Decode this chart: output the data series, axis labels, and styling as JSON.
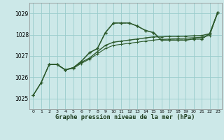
{
  "title": "Graphe pression niveau de la mer (hPa)",
  "bg_color": "#cce8e8",
  "grid_color": "#99cccc",
  "line_color": "#2d5a2d",
  "xlim": [
    -0.5,
    23.5
  ],
  "ylim": [
    1024.5,
    1029.5
  ],
  "yticks": [
    1025,
    1026,
    1027,
    1028,
    1029
  ],
  "xticks": [
    0,
    1,
    2,
    3,
    4,
    5,
    6,
    7,
    8,
    9,
    10,
    11,
    12,
    13,
    14,
    15,
    16,
    17,
    18,
    19,
    20,
    21,
    22,
    23
  ],
  "series": {
    "s1_x": [
      0,
      1,
      2,
      3,
      4,
      5,
      6,
      7,
      8,
      9,
      10,
      11,
      12,
      13,
      14,
      15,
      16,
      17,
      18,
      19,
      20,
      21,
      22,
      23
    ],
    "s1_y": [
      1025.15,
      1025.75,
      1026.6,
      1026.6,
      1026.35,
      1026.45,
      1026.75,
      1027.15,
      1027.35,
      1028.1,
      1028.55,
      1028.55,
      1028.55,
      1028.4,
      1028.2,
      1028.1,
      1027.75,
      1027.75,
      1027.75,
      1027.75,
      1027.8,
      1027.8,
      1028.05,
      1029.05
    ],
    "s2_x": [
      0,
      1,
      2,
      3,
      4,
      5,
      6,
      7,
      8,
      9,
      10,
      11,
      12,
      13,
      14,
      15,
      16,
      17,
      18,
      19,
      20,
      21,
      22,
      23
    ],
    "s2_y": [
      1025.15,
      1025.75,
      1026.6,
      1026.6,
      1026.35,
      1026.45,
      1026.7,
      1026.9,
      1027.2,
      1027.5,
      1027.65,
      1027.7,
      1027.75,
      1027.8,
      1027.85,
      1027.9,
      1027.9,
      1027.92,
      1027.92,
      1027.93,
      1027.95,
      1027.96,
      1028.05,
      1029.05
    ],
    "s3_x": [
      0,
      1,
      2,
      3,
      4,
      5,
      6,
      7,
      8,
      9,
      10,
      11,
      12,
      13,
      14,
      15,
      16,
      17,
      18,
      19,
      20,
      21,
      22,
      23
    ],
    "s3_y": [
      1025.15,
      1025.75,
      1026.6,
      1026.6,
      1026.35,
      1026.42,
      1026.65,
      1026.85,
      1027.1,
      1027.35,
      1027.5,
      1027.55,
      1027.6,
      1027.65,
      1027.7,
      1027.75,
      1027.78,
      1027.8,
      1027.82,
      1027.84,
      1027.86,
      1027.88,
      1027.97,
      1029.05
    ],
    "s4_x": [
      2,
      3,
      4,
      5,
      6,
      7,
      8,
      9,
      10,
      11,
      12,
      13,
      14,
      15,
      16,
      17,
      18,
      19,
      20,
      21,
      22,
      23
    ],
    "s4_y": [
      1026.6,
      1026.6,
      1026.35,
      1026.45,
      1026.75,
      1027.15,
      1027.35,
      1028.1,
      1028.55,
      1028.55,
      1028.55,
      1028.4,
      1028.2,
      1028.1,
      1027.75,
      1027.75,
      1027.75,
      1027.75,
      1027.8,
      1027.8,
      1028.05,
      1029.05
    ]
  }
}
